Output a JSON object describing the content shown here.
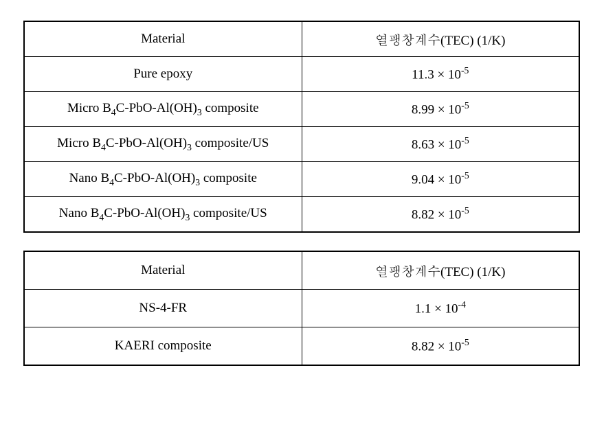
{
  "table1": {
    "header": {
      "material": "Material",
      "tec": "열팽창계수(TEC) (1/K)"
    },
    "rows": [
      {
        "material_html": "Pure epoxy",
        "tec_html": "11.3 × 10<span class=\"sup\">-5</span>"
      },
      {
        "material_html": "Micro B<span class=\"sub\">4</span>C-PbO-Al(OH)<span class=\"sub\">3</span> composite",
        "tec_html": "8.99 × 10<span class=\"sup\">-5</span>"
      },
      {
        "material_html": "Micro B<span class=\"sub\">4</span>C-PbO-Al(OH)<span class=\"sub\">3</span> composite/US",
        "tec_html": "8.63 × 10<span class=\"sup\">-5</span>"
      },
      {
        "material_html": "Nano B<span class=\"sub\">4</span>C-PbO-Al(OH)<span class=\"sub\">3</span> composite",
        "tec_html": "9.04 × 10<span class=\"sup\">-5</span>"
      },
      {
        "material_html": "Nano B<span class=\"sub\">4</span>C-PbO-Al(OH)<span class=\"sub\">3</span> composite/US",
        "tec_html": "8.82 × 10<span class=\"sup\">-5</span>"
      }
    ]
  },
  "table2": {
    "header": {
      "material": "Material",
      "tec": "열팽창계수(TEC) (1/K)"
    },
    "rows": [
      {
        "material_html": "NS-4-FR",
        "tec_html": "1.1 × 10<span class=\"sup\">-4</span>"
      },
      {
        "material_html": "KAERI composite",
        "tec_html": "8.82 × 10<span class=\"sup\">-5</span>"
      }
    ]
  }
}
